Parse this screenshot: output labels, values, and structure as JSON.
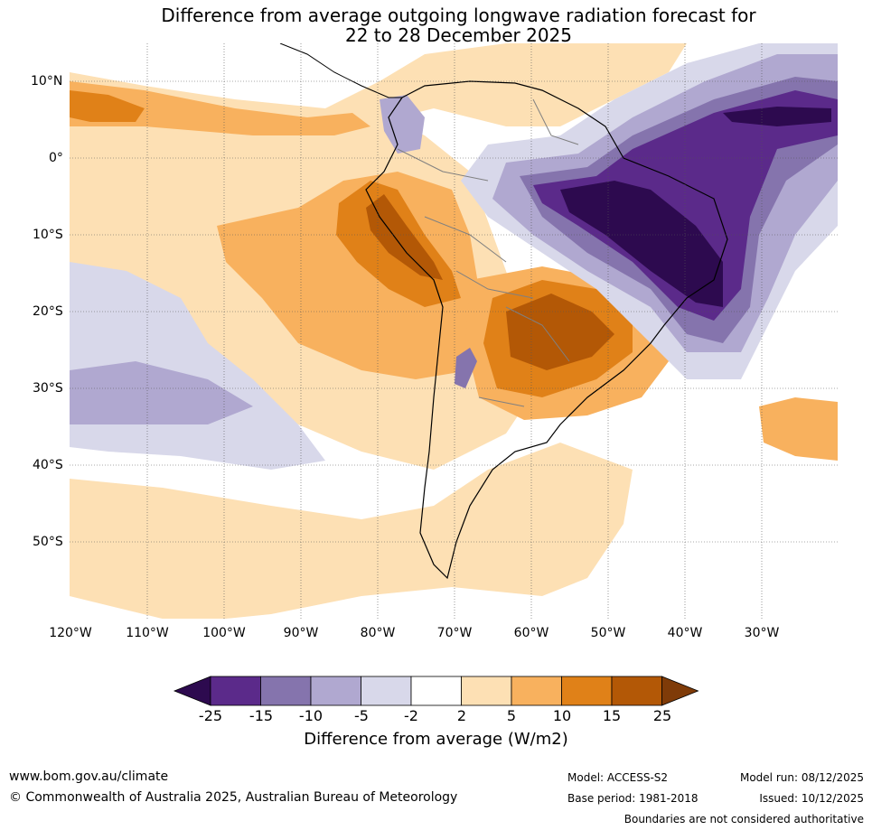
{
  "title_line1": "Difference from average outgoing longwave radiation forecast for",
  "title_line2": "22 to 28 December 2025",
  "lat_labels": [
    "10°N",
    "0°",
    "10°S",
    "20°S",
    "30°S",
    "40°S",
    "50°S"
  ],
  "lon_labels": [
    "120°W",
    "110°W",
    "100°W",
    "90°W",
    "80°W",
    "70°W",
    "60°W",
    "50°W",
    "40°W",
    "30°W"
  ],
  "colorbar": {
    "ticks": [
      "-25",
      "-15",
      "-10",
      "-5",
      "-2",
      "2",
      "5",
      "10",
      "15",
      "25"
    ],
    "label": "Difference from average (W/m2)",
    "colors": [
      "#2d0a4f",
      "#5b2a8a",
      "#8574ad",
      "#b0a8d0",
      "#d8d8ea",
      "#ffffff",
      "#fde0b4",
      "#f8b15e",
      "#e08118",
      "#b35806",
      "#7f3b08"
    ]
  },
  "footer": {
    "website": "www.bom.gov.au/climate",
    "copyright": "© Commonwealth of Australia 2025, Australian Bureau of Meteorology",
    "model": "Model: ACCESS-S2",
    "base_period": "Base period: 1981-2018",
    "model_run": "Model run: 08/12/2025",
    "issued": "Issued: 10/12/2025",
    "disclaimer": "Boundaries are not considered authoritative"
  }
}
